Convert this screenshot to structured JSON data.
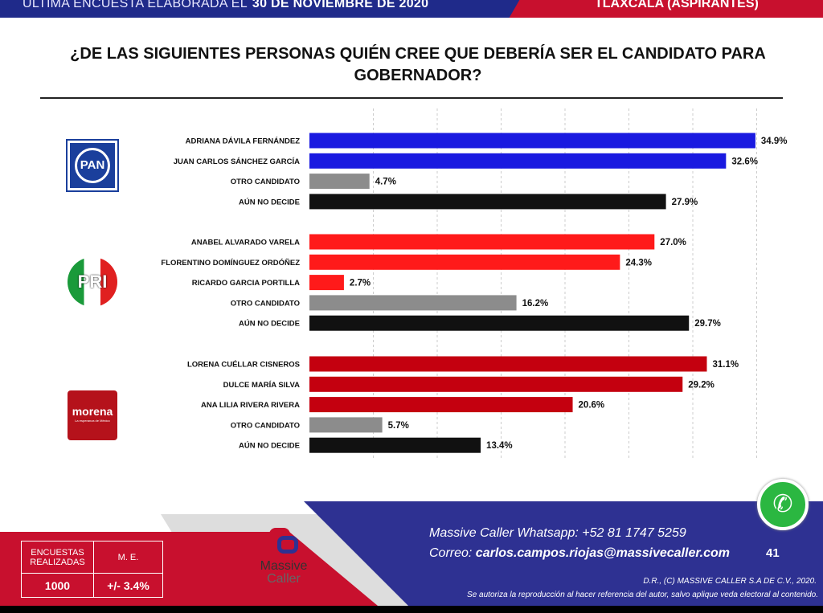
{
  "banner": {
    "left": "ÚLTIMA ENCUESTA ELABORADA EL",
    "date": "30 DE NOVIEMBRE DE 2020",
    "right": "TLAXCALA (ASPIRANTES)"
  },
  "chart_data": {
    "type": "bar",
    "orientation": "horizontal",
    "title": "¿DE LAS SIGUIENTES PERSONAS QUIÉN CREE QUE DEBERÍA SER EL CANDIDATO PARA GOBERNADOR?",
    "xlim": [
      0,
      36
    ],
    "grid": true,
    "groups": [
      {
        "party": "PAN",
        "color": "#1a1ae0",
        "logo_text": "PAN",
        "items": [
          {
            "label": "ADRIANA DÁVILA FERNÁNDEZ",
            "value": 34.9,
            "display": "34.9%",
            "kind": "candidate"
          },
          {
            "label": "JUAN CARLOS SÁNCHEZ GARCÍA",
            "value": 32.6,
            "display": "32.6%",
            "kind": "candidate"
          },
          {
            "label": "OTRO CANDIDATO",
            "value": 4.7,
            "display": "4.7%",
            "kind": "other"
          },
          {
            "label": "AÚN NO DECIDE",
            "value": 27.9,
            "display": "27.9%",
            "kind": "undecided"
          }
        ]
      },
      {
        "party": "PRI",
        "color": "#ff1a1a",
        "logo_text": "PRI",
        "items": [
          {
            "label": "ANABEL ALVARADO VARELA",
            "value": 27.0,
            "display": "27.0%",
            "kind": "candidate"
          },
          {
            "label": "FLORENTINO DOMÍNGUEZ ORDÓÑEZ",
            "value": 24.3,
            "display": "24.3%",
            "kind": "candidate"
          },
          {
            "label": "RICARDO GARCIA PORTILLA",
            "value": 2.7,
            "display": "2.7%",
            "kind": "candidate"
          },
          {
            "label": "OTRO CANDIDATO",
            "value": 16.2,
            "display": "16.2%",
            "kind": "other"
          },
          {
            "label": "AÚN NO DECIDE",
            "value": 29.7,
            "display": "29.7%",
            "kind": "undecided"
          }
        ]
      },
      {
        "party": "morena",
        "color": "#c4000f",
        "logo_text": "morena",
        "logo_sub": "La esperanza de México",
        "items": [
          {
            "label": "LORENA CUÉLLAR CISNEROS",
            "value": 31.1,
            "display": "31.1%",
            "kind": "candidate"
          },
          {
            "label": "DULCE MARÍA SILVA",
            "value": 29.2,
            "display": "29.2%",
            "kind": "candidate"
          },
          {
            "label": "ANA LILIA RIVERA RIVERA",
            "value": 20.6,
            "display": "20.6%",
            "kind": "candidate"
          },
          {
            "label": "OTRO CANDIDATO",
            "value": 5.7,
            "display": "5.7%",
            "kind": "other"
          },
          {
            "label": "AÚN NO DECIDE",
            "value": 13.4,
            "display": "13.4%",
            "kind": "undecided"
          }
        ]
      }
    ],
    "colors": {
      "other": "#8c8c8c",
      "undecided": "#111111"
    }
  },
  "stats": {
    "h1": "ENCUESTAS REALIZADAS",
    "h2": "M. E.",
    "v1": "1000",
    "v2": "+/- 3.4%"
  },
  "brand": {
    "name1": "Massive",
    "name2": "Caller"
  },
  "footer": {
    "whatsapp": "Massive Caller Whatsapp:  +52 81 1747 5259",
    "mail_label": "Correo: ",
    "mail": "carlos.campos.riojas@massivecaller.com",
    "page": "41",
    "copyright": "D.R., (C) MASSIVE CALLER S.A DE C.V., 2020.",
    "notice": "Se autoriza la reproducción al hacer referencia del autor, salvo aplique veda electoral al contenido."
  }
}
